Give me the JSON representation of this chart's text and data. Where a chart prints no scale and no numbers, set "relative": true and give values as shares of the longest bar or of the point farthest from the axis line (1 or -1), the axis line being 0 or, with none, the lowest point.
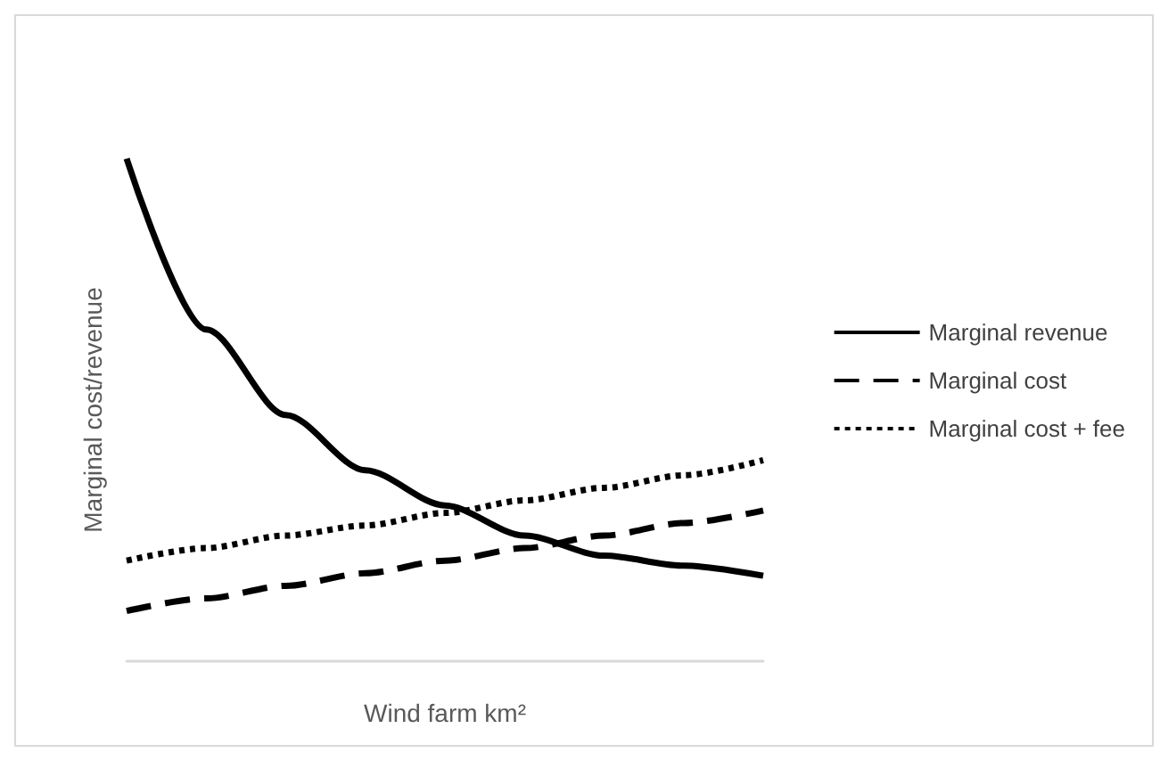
{
  "chart_data": {
    "type": "line",
    "relative": true,
    "xlabel": "Wind farm km²",
    "ylabel": "Marginal cost/revenue",
    "categories": [
      null,
      null,
      null,
      null,
      null,
      null,
      null,
      null,
      null
    ],
    "series": [
      {
        "name": "Marginal revenue",
        "color": "#000000",
        "line_style": "solid",
        "values": [
          1,
          0.66,
          0.49,
          0.38,
          0.31,
          0.25,
          0.21,
          0.19,
          0.17
        ]
      },
      {
        "name": "Marginal cost",
        "color": "#000000",
        "line_style": "dashed",
        "values": [
          0.1,
          0.125,
          0.15,
          0.175,
          0.2,
          0.225,
          0.25,
          0.275,
          0.3
        ]
      },
      {
        "name": "Marginal cost + fee",
        "color": "#000000",
        "line_style": "dotted",
        "values": [
          0.2,
          0.225,
          0.25,
          0.27,
          0.295,
          0.32,
          0.345,
          0.37,
          0.4
        ]
      }
    ],
    "legend": "right",
    "grid": false,
    "marker": "none"
  }
}
